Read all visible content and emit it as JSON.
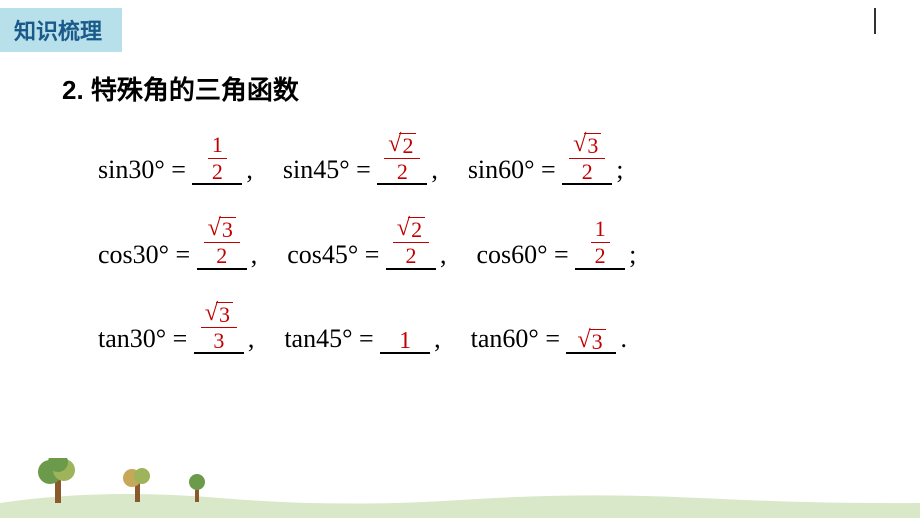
{
  "header": {
    "tab_label": "知识梳理",
    "tab_bg": "#b8e0ea",
    "tab_color": "#1a5a8a"
  },
  "section": {
    "number": "2.",
    "title": "特殊角的三角函数"
  },
  "rows": [
    {
      "items": [
        {
          "func": "sin30° = ",
          "ans_type": "frac",
          "num": "1",
          "den": "2",
          "tail": ","
        },
        {
          "func": "sin45° = ",
          "ans_type": "sqrtfrac",
          "num_rad": "2",
          "den": "2",
          "tail": ","
        },
        {
          "func": "sin60° = ",
          "ans_type": "sqrtfrac",
          "num_rad": "3",
          "den": "2",
          "tail": ";"
        }
      ]
    },
    {
      "items": [
        {
          "func": "cos30° = ",
          "ans_type": "sqrtfrac",
          "num_rad": "3",
          "den": "2",
          "tail": ","
        },
        {
          "func": "cos45° = ",
          "ans_type": "sqrtfrac",
          "num_rad": "2",
          "den": "2",
          "tail": ","
        },
        {
          "func": "cos60° = ",
          "ans_type": "frac",
          "num": "1",
          "den": "2",
          "tail": ";"
        }
      ]
    },
    {
      "items": [
        {
          "func": "tan30° = ",
          "ans_type": "sqrtfrac",
          "num_rad": "3",
          "den": "3",
          "tail": ","
        },
        {
          "func": "tan45° = ",
          "ans_type": "plain",
          "val": "1",
          "tail": ","
        },
        {
          "func": "tan60° = ",
          "ans_type": "sqrt",
          "rad": "3",
          "tail": "."
        }
      ]
    }
  ],
  "colors": {
    "answer": "#c00000",
    "text": "#000000",
    "bg": "#ffffff"
  },
  "footer": {
    "ground": "#d9e8c8",
    "trunk": "#8b5a2b",
    "foliage1": "#6b9b4a",
    "foliage2": "#9db45a",
    "foliage3": "#c5a85a"
  }
}
